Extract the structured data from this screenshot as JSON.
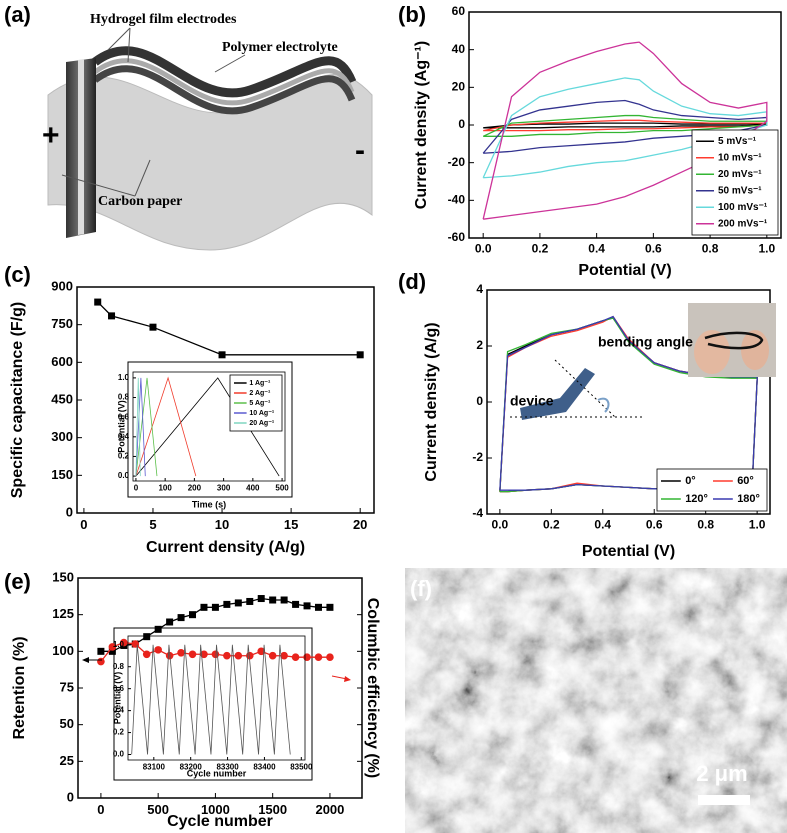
{
  "schematic": {
    "panel": "(a)",
    "electrodes_label": "Hydrogel film electrodes",
    "electrolyte_label": "Polymer electrolyte",
    "carbon_label": "Carbon paper",
    "plus": "+",
    "minus": "-"
  },
  "micrograph": {
    "panel": "(f)",
    "scale_bar": "2 μm"
  },
  "chart_data": [
    {
      "type": "line",
      "panel": "(b)",
      "xlabel": "Potential (V)",
      "ylabel": "Current density (Ag⁻¹)",
      "x": [
        0,
        0.1,
        0.2,
        0.3,
        0.4,
        0.5,
        0.55,
        0.6,
        0.7,
        0.8,
        0.9,
        1.0,
        1.0,
        0.9,
        0.8,
        0.7,
        0.6,
        0.5,
        0.4,
        0.3,
        0.2,
        0.1,
        0
      ],
      "xlim": [
        -0.05,
        1.05
      ],
      "xticks": [
        {
          "value": 0,
          "label": "0.0"
        },
        0.2,
        0.4,
        0.6,
        0.8,
        {
          "value": 1,
          "label": "1.0"
        }
      ],
      "ylim": [
        -60,
        60
      ],
      "yticks": [
        -60,
        -40,
        -20,
        0,
        20,
        40,
        60
      ],
      "legend": "lower right",
      "series": [
        {
          "name": "5 mVs⁻¹",
          "color": "#000000",
          "values": [
            -1.5,
            0,
            0.5,
            0.5,
            1,
            1,
            1,
            1,
            0.5,
            0.5,
            0.5,
            0.5,
            0,
            -0.5,
            -0.5,
            -0.5,
            -1,
            -1,
            -1,
            -1,
            -1.5,
            -1.5,
            -1.5
          ]
        },
        {
          "name": "10 mVs⁻¹",
          "color": "#ff3b2f",
          "values": [
            -3,
            0,
            1,
            1.5,
            2,
            2.5,
            2.5,
            2,
            1.5,
            1,
            1,
            1,
            0,
            -1,
            -1,
            -1.5,
            -2,
            -2,
            -2.5,
            -2.5,
            -3,
            -3,
            -3
          ]
        },
        {
          "name": "20 mVs⁻¹",
          "color": "#33b533",
          "values": [
            -6,
            1,
            2,
            3,
            4,
            5,
            5,
            4,
            3,
            2,
            2,
            2,
            0,
            -1,
            -2,
            -3,
            -3,
            -4,
            -4,
            -5,
            -5,
            -6,
            -6
          ]
        },
        {
          "name": "50 mVs⁻¹",
          "color": "#33338f",
          "values": [
            -15,
            3,
            8,
            10,
            12,
            13,
            11,
            8,
            5,
            4,
            3,
            4,
            0,
            -3,
            -5,
            -6,
            -7,
            -9,
            -10,
            -11,
            -12,
            -14,
            -15
          ]
        },
        {
          "name": "100 mVs⁻¹",
          "color": "#66d9dc",
          "values": [
            -28,
            5,
            15,
            19,
            22,
            25,
            24,
            18,
            10,
            6,
            5,
            7,
            0,
            -5,
            -9,
            -13,
            -16,
            -19,
            -20,
            -22,
            -25,
            -27,
            -28
          ]
        },
        {
          "name": "200 mVs⁻¹",
          "color": "#cc3399",
          "values": [
            -50,
            15,
            28,
            34,
            39,
            43,
            44,
            38,
            22,
            12,
            9,
            12,
            2,
            -8,
            -18,
            -25,
            -32,
            -38,
            -42,
            -44,
            -46,
            -48,
            -50
          ]
        }
      ]
    },
    {
      "type": "line",
      "panel": "(c)",
      "xlabel": "Current density (A/g)",
      "ylabel": "Specific capacitance (F/g)",
      "x": [
        1,
        2,
        5,
        10,
        20
      ],
      "xlim": [
        -0.5,
        21
      ],
      "xticks": [
        0,
        5,
        10,
        15,
        20
      ],
      "ylim": [
        0,
        900
      ],
      "yticks": [
        0,
        150,
        300,
        450,
        600,
        750,
        900
      ],
      "series": [
        {
          "color": "#000000",
          "marker": "square",
          "values": [
            840,
            785,
            740,
            630,
            630
          ]
        }
      ],
      "inset": {
        "type": "line",
        "xlabel": "Time (s)",
        "ylabel": "Potential (V)",
        "xlim": [
          -10,
          510
        ],
        "xticks": [
          0,
          100,
          200,
          300,
          400,
          500
        ],
        "ylim": [
          -0.05,
          1.06
        ],
        "yticks": [
          {
            "value": 0,
            "label": "0.0"
          },
          0.2,
          0.4,
          0.6,
          0.8,
          {
            "value": 1,
            "label": "1.0"
          }
        ],
        "legend": "upper right",
        "series": [
          {
            "name": "1 Ag⁻¹",
            "color": "#000000",
            "x": [
              0,
              280,
              490
            ],
            "values": [
              0,
              1,
              0
            ]
          },
          {
            "name": "2 Ag⁻¹",
            "color": "#f03c2c",
            "x": [
              0,
              110,
              205
            ],
            "values": [
              0,
              1,
              0
            ]
          },
          {
            "name": "5 Ag⁻¹",
            "color": "#5cbf4a",
            "x": [
              0,
              38,
              72
            ],
            "values": [
              0,
              1,
              0
            ]
          },
          {
            "name": "10 Ag⁻¹",
            "color": "#5a5ad0",
            "x": [
              0,
              17,
              32
            ],
            "values": [
              0,
              1,
              0
            ]
          },
          {
            "name": "20 Ag⁻¹",
            "color": "#7fd6c0",
            "x": [
              0,
              8,
              15
            ],
            "values": [
              0,
              1,
              0
            ]
          }
        ]
      }
    },
    {
      "type": "line",
      "panel": "(d)",
      "xlabel": "Potential (V)",
      "ylabel": "Current density (A/g)",
      "annotations": [
        "bending angle",
        "device"
      ],
      "x": [
        0,
        0.03,
        0.1,
        0.2,
        0.3,
        0.4,
        0.44,
        0.5,
        0.6,
        0.7,
        0.8,
        0.9,
        1.0,
        1.0,
        0.98,
        0.9,
        0.8,
        0.7,
        0.6,
        0.5,
        0.4,
        0.3,
        0.2,
        0.1,
        0.03,
        0
      ],
      "xlim": [
        -0.05,
        1.05
      ],
      "xticks": [
        {
          "value": 0,
          "label": "0.0"
        },
        0.2,
        0.4,
        0.6,
        0.8,
        {
          "value": 1,
          "label": "1.0"
        }
      ],
      "ylim": [
        -4,
        4
      ],
      "yticks": [
        -4,
        -2,
        0,
        2,
        4
      ],
      "legend": "lower right",
      "series": [
        {
          "name": "0°",
          "color": "#000000",
          "values": [
            -3.2,
            1.7,
            2.0,
            2.4,
            2.6,
            2.9,
            3.0,
            2.2,
            1.4,
            1.1,
            0.95,
            0.9,
            0.9,
            0.8,
            -3.1,
            -3.1,
            -3.1,
            -3.1,
            -3.1,
            -3.05,
            -3.0,
            -2.95,
            -3.1,
            -3.15,
            -3.2,
            -3.2
          ]
        },
        {
          "name": "60°",
          "color": "#ff3b2f",
          "values": [
            -3.2,
            1.6,
            1.95,
            2.35,
            2.55,
            2.85,
            3.05,
            2.25,
            1.4,
            1.1,
            0.95,
            0.9,
            0.85,
            0.8,
            -3.1,
            -3.1,
            -3.1,
            -3.1,
            -3.1,
            -3.05,
            -3.0,
            -2.9,
            -3.1,
            -3.15,
            -3.2,
            -3.2
          ]
        },
        {
          "name": "120°",
          "color": "#33b533",
          "values": [
            -3.2,
            1.8,
            2.05,
            2.45,
            2.6,
            2.9,
            3.0,
            2.15,
            1.35,
            1.05,
            0.9,
            0.85,
            0.85,
            0.8,
            -3.1,
            -3.1,
            -3.1,
            -3.1,
            -3.1,
            -3.05,
            -3.0,
            -2.95,
            -3.1,
            -3.15,
            -3.2,
            -3.2
          ]
        },
        {
          "name": "180°",
          "color": "#3a3ab0",
          "values": [
            -3.15,
            1.65,
            1.95,
            2.4,
            2.6,
            2.9,
            3.05,
            2.2,
            1.4,
            1.1,
            0.95,
            0.9,
            0.9,
            0.8,
            -3.1,
            -3.1,
            -3.1,
            -3.1,
            -3.1,
            -3.05,
            -3.0,
            -2.95,
            -3.1,
            -3.15,
            -3.15,
            -3.15
          ]
        }
      ]
    },
    {
      "type": "line",
      "panel": "(e)",
      "xlabel": "Cycle number",
      "ylabel": "Retention (%)",
      "y2label": "Columbic efficiency (%)",
      "x": [
        0,
        100,
        200,
        300,
        400,
        500,
        600,
        700,
        800,
        900,
        1000,
        1100,
        1200,
        1300,
        1400,
        1500,
        1600,
        1700,
        1800,
        1900,
        2000
      ],
      "xlim": [
        -200,
        2280
      ],
      "xticks": [
        0,
        500,
        1000,
        1500,
        2000
      ],
      "ylim": [
        0,
        150
      ],
      "yticks": [
        0,
        25,
        50,
        75,
        100,
        125,
        150
      ],
      "y2lim": [
        0,
        150
      ],
      "series": [
        {
          "color": "#000000",
          "marker": "square",
          "values": [
            100,
            100,
            104,
            105,
            110,
            115,
            120,
            123,
            125,
            130,
            130,
            132,
            133,
            134,
            136,
            135,
            135,
            132,
            131,
            130,
            130
          ]
        },
        {
          "color": "#e8231c",
          "marker": "circle",
          "axis": "y2",
          "values": [
            93,
            103,
            106,
            105,
            98,
            101,
            97,
            99,
            98,
            98,
            98,
            97,
            97,
            97,
            100,
            97,
            97,
            96,
            96,
            96,
            96
          ]
        }
      ],
      "inset": {
        "type": "line",
        "xlabel": "Cycle number",
        "ylabel": "Potential (V)",
        "xlim": [
          83030,
          83510
        ],
        "xticks": [
          83100,
          83200,
          83300,
          83400,
          83500
        ],
        "ylim": [
          -0.05,
          1.08
        ],
        "yticks": [
          {
            "value": 0,
            "label": "0.0"
          },
          0.2,
          0.4,
          0.6,
          0.8,
          {
            "value": 1,
            "label": "1.0"
          }
        ],
        "series": [
          {
            "color": "#555555",
            "x": [
              83040,
              83055,
              83083,
              83098,
              83126,
              83141,
              83169,
              83184,
              83212,
              83227,
              83255,
              83270,
              83298,
              83313,
              83341,
              83356,
              83384,
              83399,
              83427,
              83442,
              83470
            ],
            "values": [
              0,
              1,
              0,
              1,
              0,
              1,
              0,
              1,
              0,
              1,
              0,
              1,
              0,
              1,
              0,
              1,
              0,
              1,
              0,
              1,
              0
            ]
          }
        ]
      }
    }
  ]
}
